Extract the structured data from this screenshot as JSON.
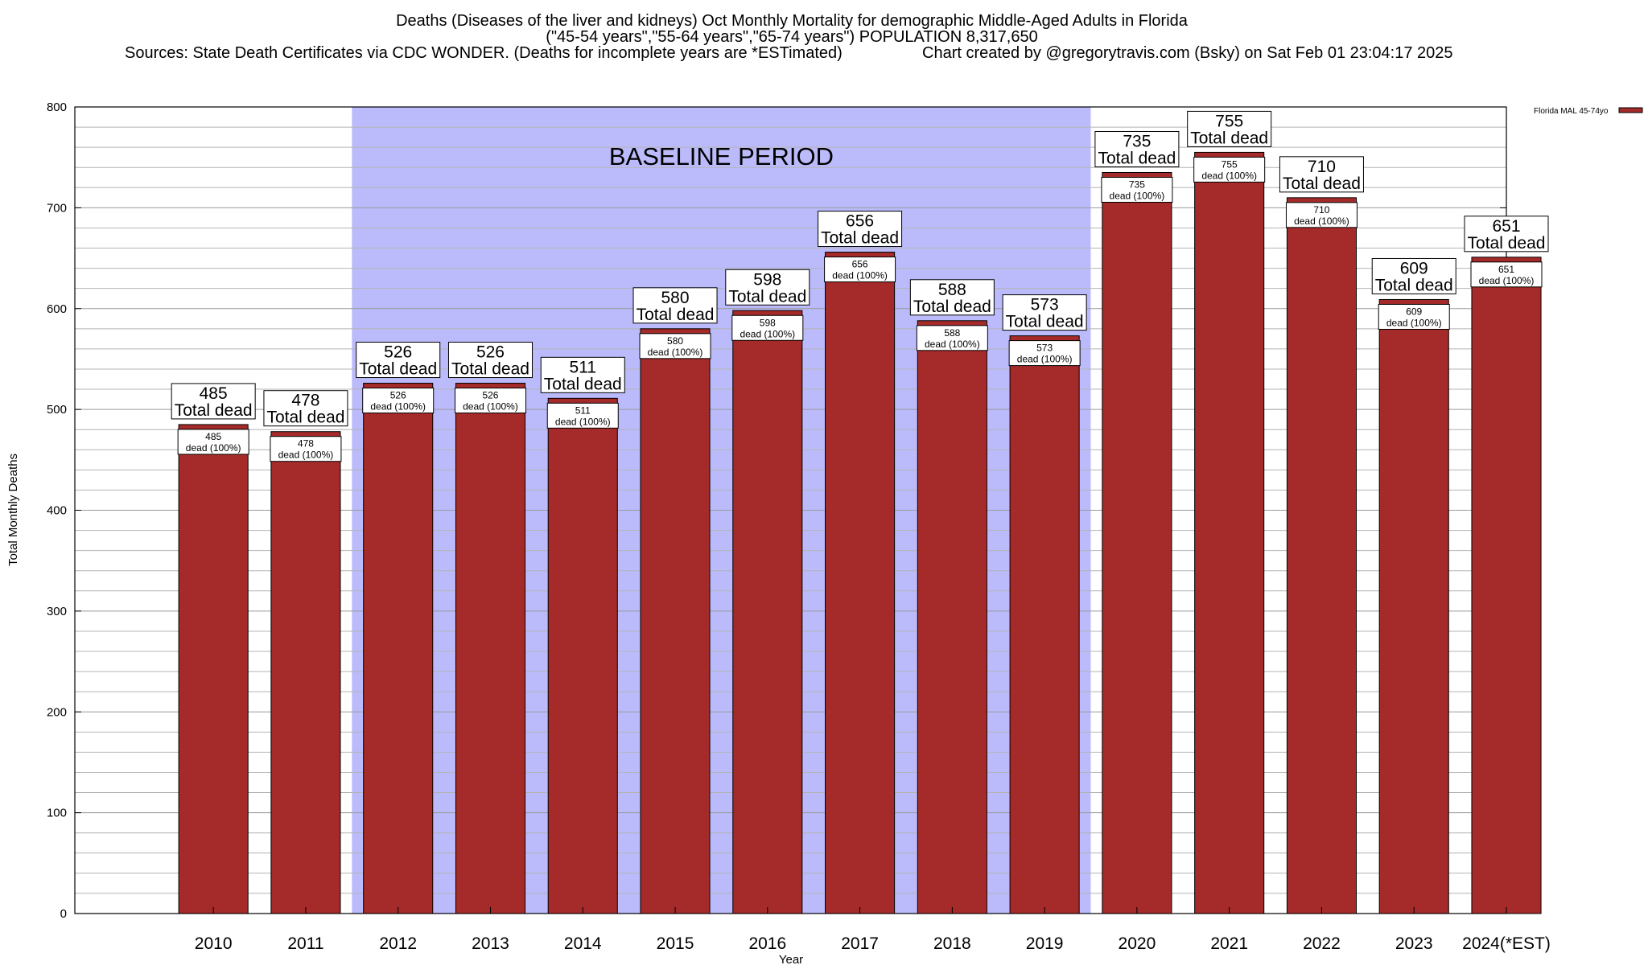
{
  "title": {
    "line1": "Deaths (Diseases of the liver and kidneys) Oct Monthly Mortality for demographic Middle-Aged Adults in Florida",
    "line2": "(\"45-54 years\",\"55-64 years\",\"65-74 years\") POPULATION 8,317,650",
    "sources": "Sources: State Death Certificates via CDC WONDER. (Deaths for incomplete years are *ESTimated)",
    "credit": "Chart created by @gregorytravis.com (Bsky) on Sat Feb 01 23:04:17 2025"
  },
  "legend": {
    "label": "Florida MAL 45-74yo",
    "color": "#a52a2a"
  },
  "colors": {
    "bar": "#a52a2a",
    "baseline_band": "#bbbbfc",
    "grid": "#b4b4b4"
  },
  "chart_data": {
    "type": "bar",
    "categories": [
      "2010",
      "2011",
      "2012",
      "2013",
      "2014",
      "2015",
      "2016",
      "2017",
      "2018",
      "2019",
      "2020",
      "2021",
      "2022",
      "2023",
      "2024(*EST)"
    ],
    "series": [
      {
        "name": "Florida MAL 45-74yo",
        "values": [
          485,
          478,
          526,
          526,
          511,
          580,
          598,
          656,
          588,
          573,
          735,
          755,
          710,
          609,
          651
        ]
      }
    ],
    "bar_label_big_suffix": "Total dead",
    "bar_label_small_suffix": "dead (100%)",
    "xlabel": "Year",
    "ylabel": "Total Monthly Deaths",
    "ylim": [
      0,
      800
    ],
    "yticks": [
      0,
      100,
      200,
      300,
      400,
      500,
      600,
      700,
      800
    ],
    "grid": true,
    "legend_position": "top-right",
    "baseline_period": {
      "label": "BASELINE PERIOD",
      "start_category": "2012",
      "end_category": "2019"
    }
  }
}
